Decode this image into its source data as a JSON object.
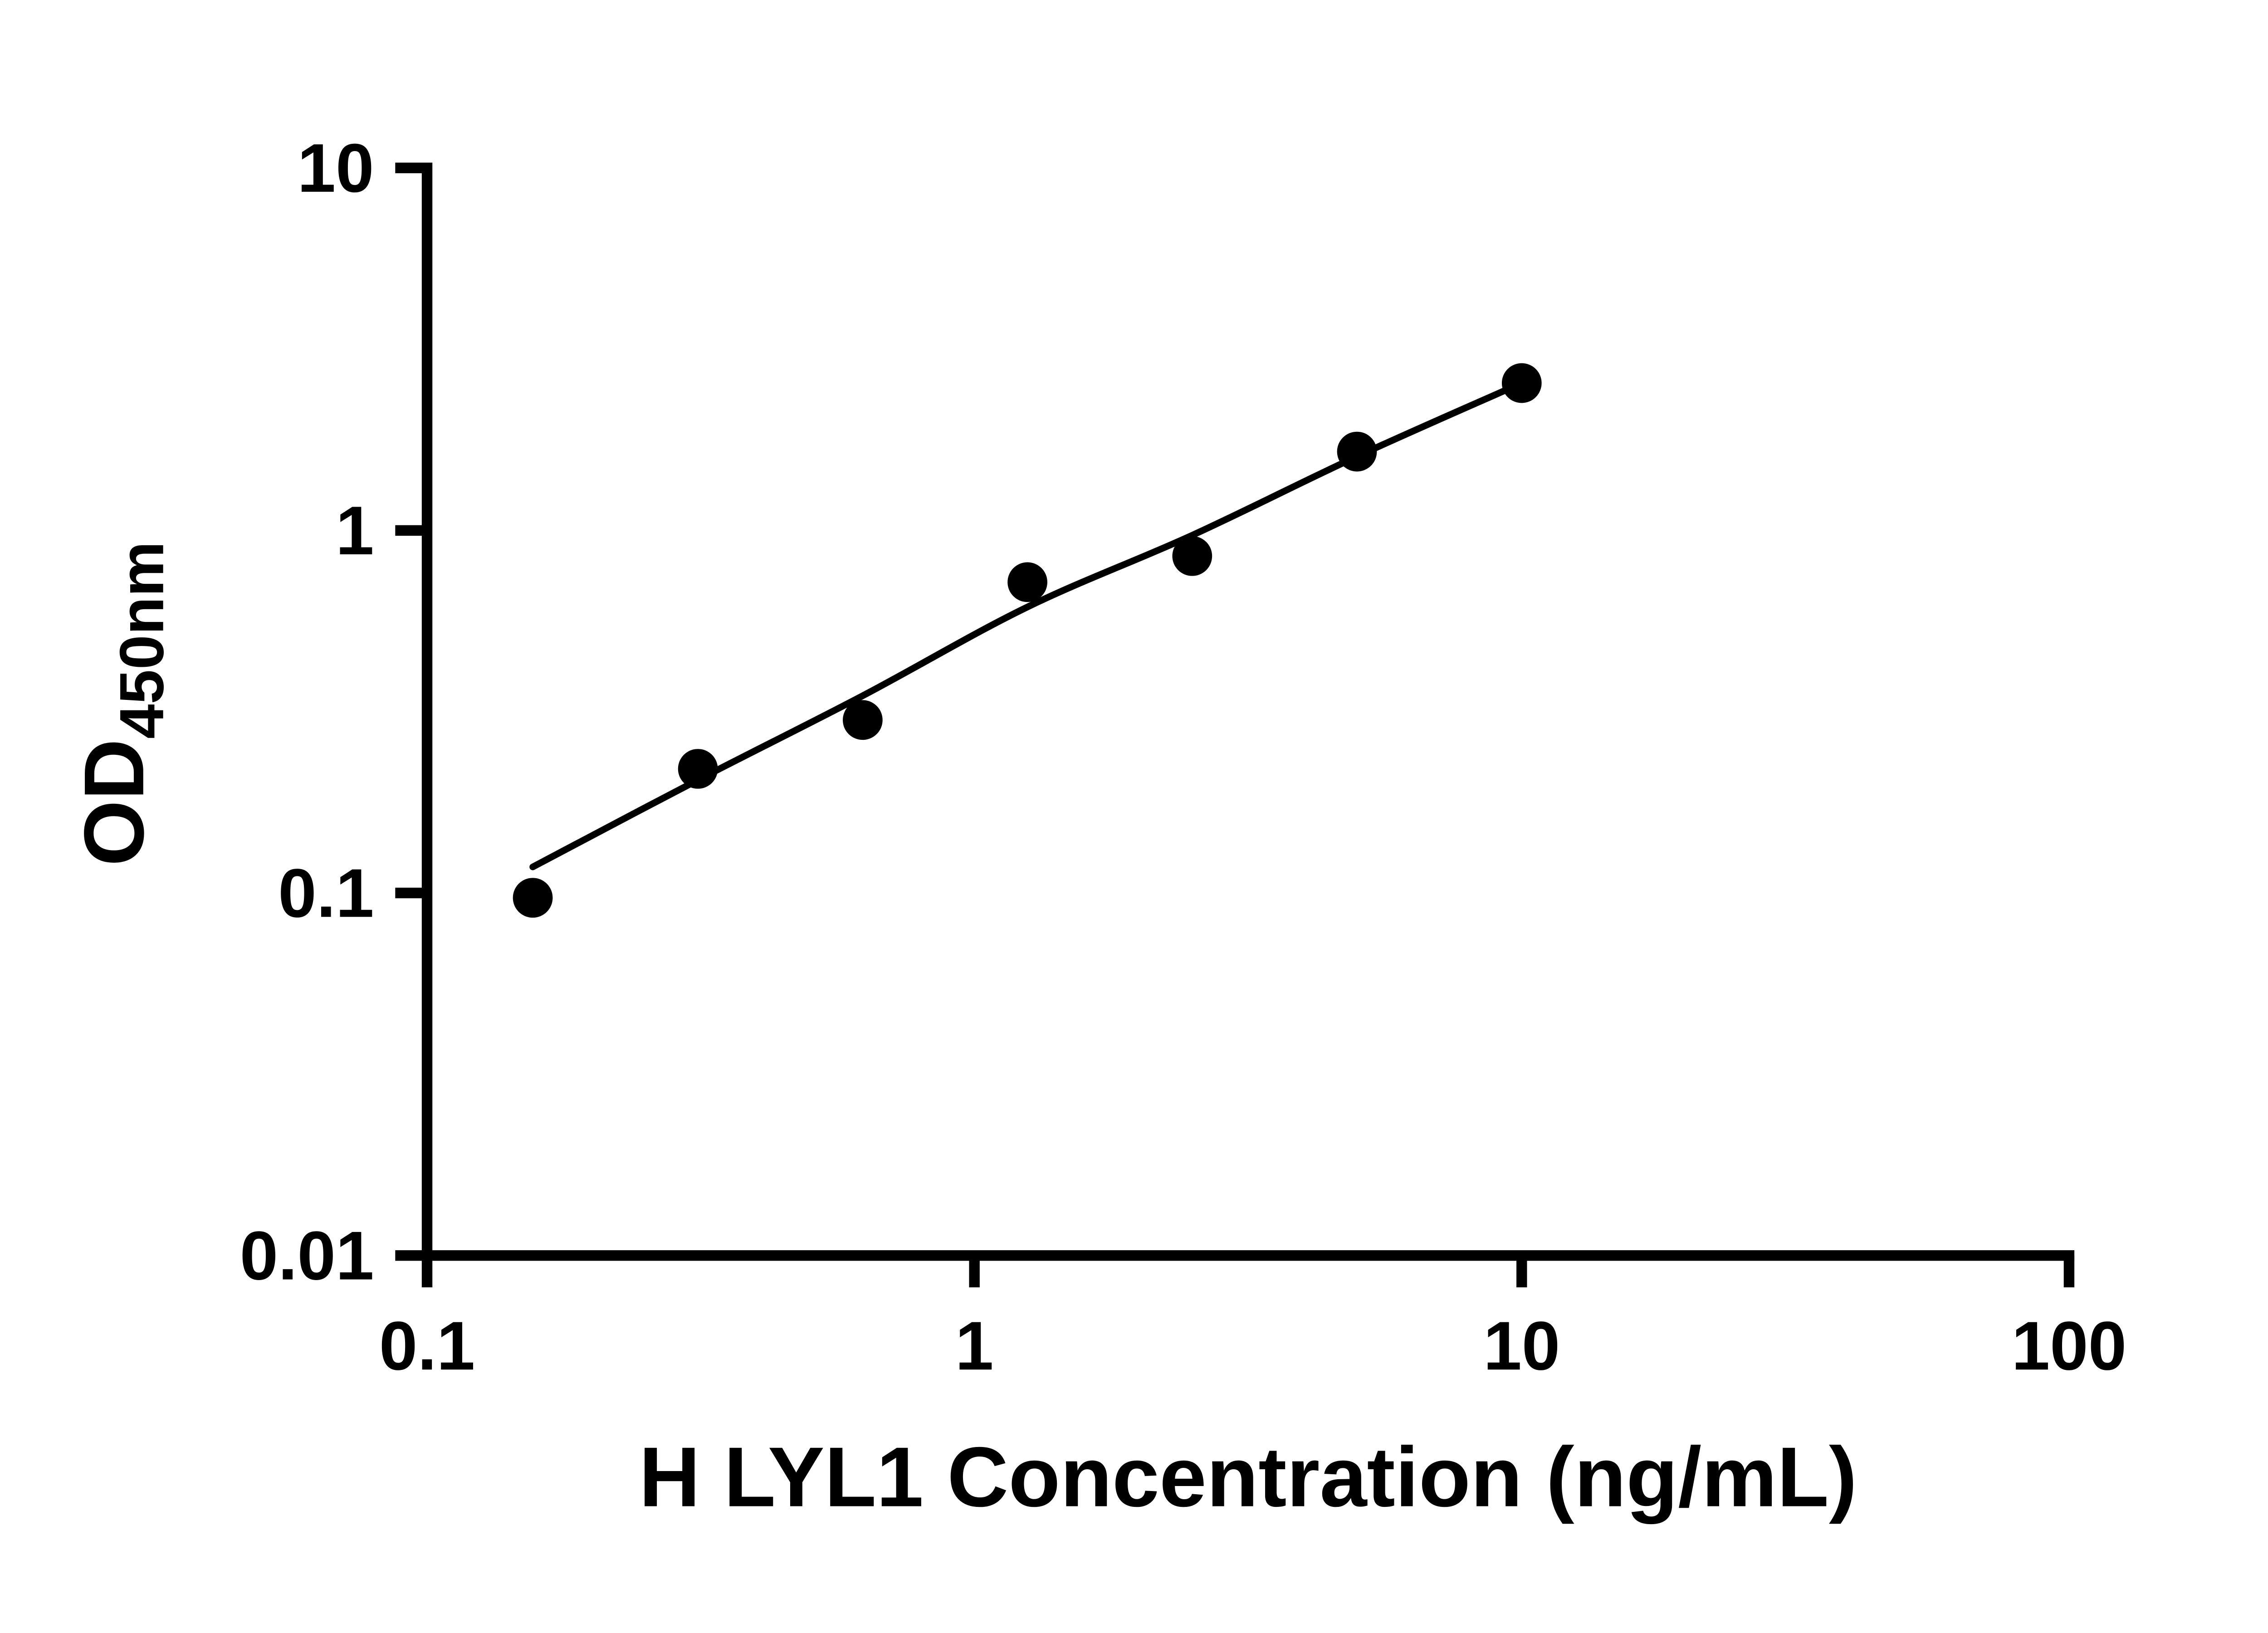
{
  "figure": {
    "background": "#ffffff"
  },
  "chart_data": {
    "type": "scatter",
    "title": "",
    "xlabel": "H LYL1 Concentration (ng/mL)",
    "ylabel_main": "OD",
    "ylabel_sub": "450nm",
    "x_scale": "log",
    "y_scale": "log",
    "xlim": [
      0.1,
      100
    ],
    "ylim": [
      0.01,
      10
    ],
    "grid": false,
    "legend": false,
    "x_ticks": [
      {
        "value": 0.1,
        "label": "0.1"
      },
      {
        "value": 1,
        "label": "1"
      },
      {
        "value": 10,
        "label": "10"
      },
      {
        "value": 100,
        "label": "100"
      }
    ],
    "y_ticks": [
      {
        "value": 0.01,
        "label": "0.01"
      },
      {
        "value": 0.1,
        "label": "0.1"
      },
      {
        "value": 1,
        "label": "1"
      },
      {
        "value": 10,
        "label": "10"
      }
    ],
    "series": [
      {
        "name": "standard-points",
        "type": "scatter",
        "x": [
          0.156,
          0.3125,
          0.625,
          1.25,
          2.5,
          5,
          10
        ],
        "y": [
          0.097,
          0.22,
          0.3,
          0.72,
          0.85,
          1.65,
          2.55
        ],
        "marker": {
          "shape": "circle",
          "color": "#000000",
          "radius": 15
        }
      },
      {
        "name": "fit-line",
        "type": "line",
        "x": [
          0.156,
          0.3125,
          0.625,
          1.25,
          2.5,
          5,
          10
        ],
        "y": [
          0.118,
          0.205,
          0.35,
          0.615,
          0.97,
          1.6,
          2.55
        ],
        "color": "#000000",
        "width": 5
      }
    ],
    "colors": {
      "axis": "#000000",
      "marker": "#000000",
      "background": "#ffffff"
    }
  }
}
